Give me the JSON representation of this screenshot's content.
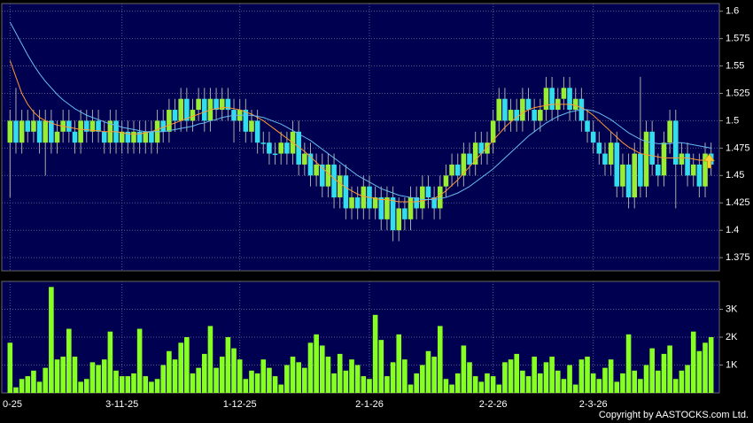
{
  "chart_data": [
    {
      "type": "candlestick",
      "up_color": "#99ee33",
      "down_color": "#33ddee",
      "grid": true,
      "ylim": [
        1.363,
        1.607
      ],
      "yticks": [
        1.375,
        1.4,
        1.425,
        1.45,
        1.475,
        1.5,
        1.525,
        1.55,
        1.575,
        1.6
      ],
      "open": [
        1.48,
        1.5,
        1.48,
        1.5,
        1.49,
        1.5,
        1.48,
        1.5,
        1.48,
        1.49,
        1.5,
        1.49,
        1.48,
        1.5,
        1.49,
        1.5,
        1.49,
        1.48,
        1.5,
        1.48,
        1.49,
        1.48,
        1.49,
        1.48,
        1.49,
        1.48,
        1.5,
        1.49,
        1.51,
        1.5,
        1.52,
        1.5,
        1.51,
        1.52,
        1.5,
        1.52,
        1.51,
        1.52,
        1.51,
        1.5,
        1.51,
        1.49,
        1.5,
        1.48,
        1.48,
        1.47,
        1.47,
        1.48,
        1.47,
        1.49,
        1.46,
        1.47,
        1.45,
        1.46,
        1.44,
        1.46,
        1.43,
        1.45,
        1.42,
        1.43,
        1.42,
        1.44,
        1.42,
        1.43,
        1.41,
        1.43,
        1.4,
        1.42,
        1.41,
        1.43,
        1.42,
        1.44,
        1.43,
        1.42,
        1.44,
        1.45,
        1.46,
        1.45,
        1.47,
        1.46,
        1.48,
        1.47,
        1.48,
        1.5,
        1.52,
        1.5,
        1.51,
        1.5,
        1.52,
        1.51,
        1.5,
        1.51,
        1.53,
        1.51,
        1.52,
        1.53,
        1.51,
        1.52,
        1.5,
        1.49,
        1.48,
        1.47,
        1.46,
        1.48,
        1.44,
        1.46,
        1.43,
        1.47,
        1.44,
        1.49,
        1.46,
        1.45,
        1.48,
        1.5,
        1.46,
        1.47,
        1.45,
        1.46,
        1.44,
        1.47
      ],
      "high": [
        1.51,
        1.53,
        1.51,
        1.51,
        1.51,
        1.51,
        1.51,
        1.51,
        1.5,
        1.51,
        1.51,
        1.5,
        1.51,
        1.51,
        1.51,
        1.51,
        1.5,
        1.51,
        1.51,
        1.5,
        1.5,
        1.5,
        1.5,
        1.5,
        1.5,
        1.51,
        1.51,
        1.52,
        1.52,
        1.53,
        1.53,
        1.52,
        1.53,
        1.53,
        1.53,
        1.53,
        1.53,
        1.53,
        1.52,
        1.52,
        1.52,
        1.51,
        1.51,
        1.49,
        1.49,
        1.48,
        1.49,
        1.49,
        1.5,
        1.5,
        1.48,
        1.48,
        1.47,
        1.47,
        1.47,
        1.47,
        1.46,
        1.46,
        1.44,
        1.44,
        1.45,
        1.45,
        1.44,
        1.44,
        1.44,
        1.44,
        1.43,
        1.43,
        1.44,
        1.44,
        1.45,
        1.45,
        1.44,
        1.45,
        1.46,
        1.47,
        1.47,
        1.48,
        1.48,
        1.49,
        1.49,
        1.49,
        1.51,
        1.53,
        1.53,
        1.52,
        1.52,
        1.53,
        1.53,
        1.52,
        1.52,
        1.54,
        1.54,
        1.53,
        1.54,
        1.54,
        1.53,
        1.53,
        1.51,
        1.5,
        1.49,
        1.48,
        1.49,
        1.49,
        1.47,
        1.47,
        1.48,
        1.54,
        1.5,
        1.5,
        1.47,
        1.49,
        1.51,
        1.51,
        1.48,
        1.48,
        1.47,
        1.47,
        1.48,
        1.48
      ],
      "low": [
        1.43,
        1.47,
        1.47,
        1.48,
        1.48,
        1.47,
        1.45,
        1.47,
        1.47,
        1.48,
        1.48,
        1.47,
        1.47,
        1.48,
        1.48,
        1.48,
        1.47,
        1.47,
        1.47,
        1.47,
        1.47,
        1.47,
        1.47,
        1.47,
        1.47,
        1.47,
        1.48,
        1.48,
        1.49,
        1.49,
        1.49,
        1.49,
        1.5,
        1.49,
        1.49,
        1.5,
        1.5,
        1.5,
        1.48,
        1.49,
        1.48,
        1.48,
        1.47,
        1.47,
        1.46,
        1.46,
        1.46,
        1.46,
        1.46,
        1.45,
        1.45,
        1.44,
        1.44,
        1.43,
        1.43,
        1.42,
        1.42,
        1.41,
        1.41,
        1.41,
        1.41,
        1.41,
        1.41,
        1.4,
        1.4,
        1.39,
        1.39,
        1.4,
        1.4,
        1.41,
        1.41,
        1.42,
        1.41,
        1.41,
        1.43,
        1.44,
        1.44,
        1.44,
        1.45,
        1.45,
        1.46,
        1.46,
        1.47,
        1.49,
        1.49,
        1.49,
        1.49,
        1.49,
        1.5,
        1.49,
        1.49,
        1.5,
        1.5,
        1.5,
        1.51,
        1.5,
        1.5,
        1.49,
        1.48,
        1.47,
        1.46,
        1.45,
        1.45,
        1.43,
        1.43,
        1.42,
        1.42,
        1.43,
        1.43,
        1.45,
        1.44,
        1.44,
        1.47,
        1.42,
        1.45,
        1.44,
        1.44,
        1.43,
        1.43,
        1.45
      ],
      "close": [
        1.5,
        1.48,
        1.5,
        1.49,
        1.5,
        1.48,
        1.5,
        1.48,
        1.49,
        1.5,
        1.49,
        1.48,
        1.5,
        1.49,
        1.5,
        1.49,
        1.48,
        1.5,
        1.48,
        1.49,
        1.48,
        1.49,
        1.48,
        1.49,
        1.48,
        1.5,
        1.49,
        1.51,
        1.5,
        1.52,
        1.5,
        1.51,
        1.52,
        1.5,
        1.52,
        1.51,
        1.52,
        1.51,
        1.5,
        1.51,
        1.49,
        1.5,
        1.48,
        1.48,
        1.47,
        1.47,
        1.48,
        1.47,
        1.49,
        1.46,
        1.47,
        1.45,
        1.46,
        1.44,
        1.46,
        1.43,
        1.45,
        1.42,
        1.43,
        1.42,
        1.44,
        1.42,
        1.43,
        1.41,
        1.43,
        1.4,
        1.42,
        1.41,
        1.43,
        1.42,
        1.44,
        1.43,
        1.42,
        1.44,
        1.45,
        1.46,
        1.45,
        1.47,
        1.46,
        1.48,
        1.47,
        1.48,
        1.5,
        1.52,
        1.5,
        1.51,
        1.5,
        1.52,
        1.51,
        1.5,
        1.51,
        1.53,
        1.51,
        1.52,
        1.53,
        1.51,
        1.52,
        1.5,
        1.49,
        1.48,
        1.47,
        1.46,
        1.48,
        1.44,
        1.46,
        1.43,
        1.47,
        1.44,
        1.49,
        1.46,
        1.45,
        1.48,
        1.5,
        1.46,
        1.47,
        1.45,
        1.46,
        1.44,
        1.47,
        1.46
      ],
      "series": [
        {
          "color": "#ff9933",
          "values": [
            1.555,
            1.54,
            1.525,
            1.515,
            1.508,
            1.503,
            1.5,
            1.498,
            1.496,
            1.495,
            1.494,
            1.493,
            1.492,
            1.492,
            1.491,
            1.491,
            1.49,
            1.49,
            1.49,
            1.489,
            1.488,
            1.488,
            1.488,
            1.489,
            1.49,
            1.492,
            1.494,
            1.496,
            1.498,
            1.5,
            1.502,
            1.504,
            1.506,
            1.508,
            1.51,
            1.511,
            1.512,
            1.512,
            1.511,
            1.51,
            1.508,
            1.506,
            1.503,
            1.5,
            1.496,
            1.492,
            1.488,
            1.484,
            1.48,
            1.476,
            1.472,
            1.467,
            1.462,
            1.457,
            1.452,
            1.447,
            1.443,
            1.439,
            1.436,
            1.433,
            1.431,
            1.43,
            1.429,
            1.428,
            1.428,
            1.427,
            1.426,
            1.426,
            1.426,
            1.426,
            1.427,
            1.428,
            1.429,
            1.432,
            1.436,
            1.441,
            1.446,
            1.452,
            1.458,
            1.464,
            1.47,
            1.476,
            1.482,
            1.488,
            1.494,
            1.499,
            1.503,
            1.507,
            1.51,
            1.512,
            1.513,
            1.514,
            1.515,
            1.515,
            1.515,
            1.515,
            1.514,
            1.512,
            1.509,
            1.505,
            1.5,
            1.495,
            1.49,
            1.485,
            1.48,
            1.476,
            1.473,
            1.47,
            1.469,
            1.468,
            1.467,
            1.466,
            1.466,
            1.466,
            1.466,
            1.466,
            1.465,
            1.464,
            1.464,
            1.464
          ]
        },
        {
          "color": "#66bbee",
          "values": [
            1.59,
            1.58,
            1.57,
            1.56,
            1.551,
            1.543,
            1.536,
            1.53,
            1.524,
            1.519,
            1.515,
            1.511,
            1.508,
            1.505,
            1.503,
            1.501,
            1.499,
            1.497,
            1.496,
            1.494,
            1.493,
            1.492,
            1.491,
            1.49,
            1.49,
            1.49,
            1.49,
            1.491,
            1.492,
            1.493,
            1.494,
            1.495,
            1.497,
            1.498,
            1.5,
            1.501,
            1.503,
            1.504,
            1.505,
            1.505,
            1.505,
            1.505,
            1.504,
            1.503,
            1.501,
            1.499,
            1.497,
            1.494,
            1.491,
            1.488,
            1.485,
            1.482,
            1.478,
            1.474,
            1.47,
            1.466,
            1.462,
            1.458,
            1.454,
            1.45,
            1.447,
            1.444,
            1.441,
            1.438,
            1.436,
            1.434,
            1.432,
            1.431,
            1.43,
            1.429,
            1.428,
            1.428,
            1.428,
            1.429,
            1.43,
            1.432,
            1.434,
            1.437,
            1.44,
            1.444,
            1.448,
            1.452,
            1.456,
            1.461,
            1.466,
            1.471,
            1.476,
            1.481,
            1.486,
            1.49,
            1.494,
            1.498,
            1.501,
            1.504,
            1.506,
            1.508,
            1.509,
            1.51,
            1.51,
            1.509,
            1.507,
            1.504,
            1.501,
            1.497,
            1.493,
            1.489,
            1.486,
            1.483,
            1.481,
            1.48,
            1.479,
            1.479,
            1.479,
            1.48,
            1.48,
            1.479,
            1.478,
            1.477,
            1.476,
            1.475
          ]
        }
      ]
    },
    {
      "type": "bar",
      "color": "#88ff22",
      "grid": true,
      "ylim": [
        0,
        4000
      ],
      "yticks": [
        {
          "value": 1000,
          "label": "1K"
        },
        {
          "value": 2000,
          "label": "2K"
        },
        {
          "value": 3000,
          "label": "3K"
        }
      ],
      "categories": [
        "0-25",
        null,
        null,
        null,
        null,
        null,
        null,
        null,
        null,
        null,
        null,
        null,
        null,
        null,
        null,
        null,
        null,
        null,
        null,
        "3-11-25",
        null,
        null,
        null,
        null,
        null,
        null,
        null,
        null,
        null,
        null,
        null,
        null,
        null,
        null,
        null,
        null,
        null,
        null,
        null,
        "1-12-25",
        null,
        null,
        null,
        null,
        null,
        null,
        null,
        null,
        null,
        null,
        null,
        null,
        null,
        null,
        null,
        null,
        null,
        null,
        null,
        null,
        null,
        "2-1-26",
        null,
        null,
        null,
        null,
        null,
        null,
        null,
        null,
        null,
        null,
        null,
        null,
        null,
        null,
        null,
        null,
        null,
        null,
        null,
        null,
        "2-2-26",
        null,
        null,
        null,
        null,
        null,
        null,
        null,
        null,
        null,
        null,
        null,
        null,
        null,
        null,
        null,
        null,
        "2-3-26",
        null,
        null,
        null,
        null,
        null,
        null,
        null,
        null,
        null,
        null,
        null,
        null,
        null,
        null,
        null,
        null,
        null,
        null,
        null,
        null
      ],
      "values": [
        1800,
        200,
        500,
        600,
        800,
        400,
        900,
        3800,
        1200,
        1300,
        2300,
        1300,
        400,
        500,
        1100,
        1000,
        1200,
        2200,
        800,
        600,
        600,
        700,
        2300,
        600,
        400,
        500,
        1000,
        1500,
        1200,
        1800,
        2000,
        700,
        900,
        1400,
        2400,
        900,
        1300,
        2000,
        1600,
        1200,
        500,
        800,
        700,
        1200,
        900,
        600,
        300,
        1000,
        1300,
        1100,
        900,
        1800,
        2100,
        1700,
        1300,
        700,
        1400,
        800,
        1200,
        1000,
        600,
        500,
        2800,
        1900,
        600,
        1100,
        2100,
        1200,
        300,
        700,
        1000,
        1500,
        1300,
        2400,
        500,
        300,
        700,
        1700,
        1100,
        600,
        400,
        700,
        600,
        300,
        1100,
        1200,
        1400,
        800,
        600,
        1300,
        700,
        1100,
        1300,
        800,
        500,
        1000,
        300,
        1200,
        1300,
        700,
        500,
        900,
        1200,
        400,
        700,
        2100,
        800,
        500,
        1000,
        1600,
        800,
        1400,
        1700,
        500,
        800,
        1000,
        2200,
        1500,
        1800,
        2000
      ],
      "footer": "Copyright by AASTOCKS.com Ltd."
    }
  ]
}
